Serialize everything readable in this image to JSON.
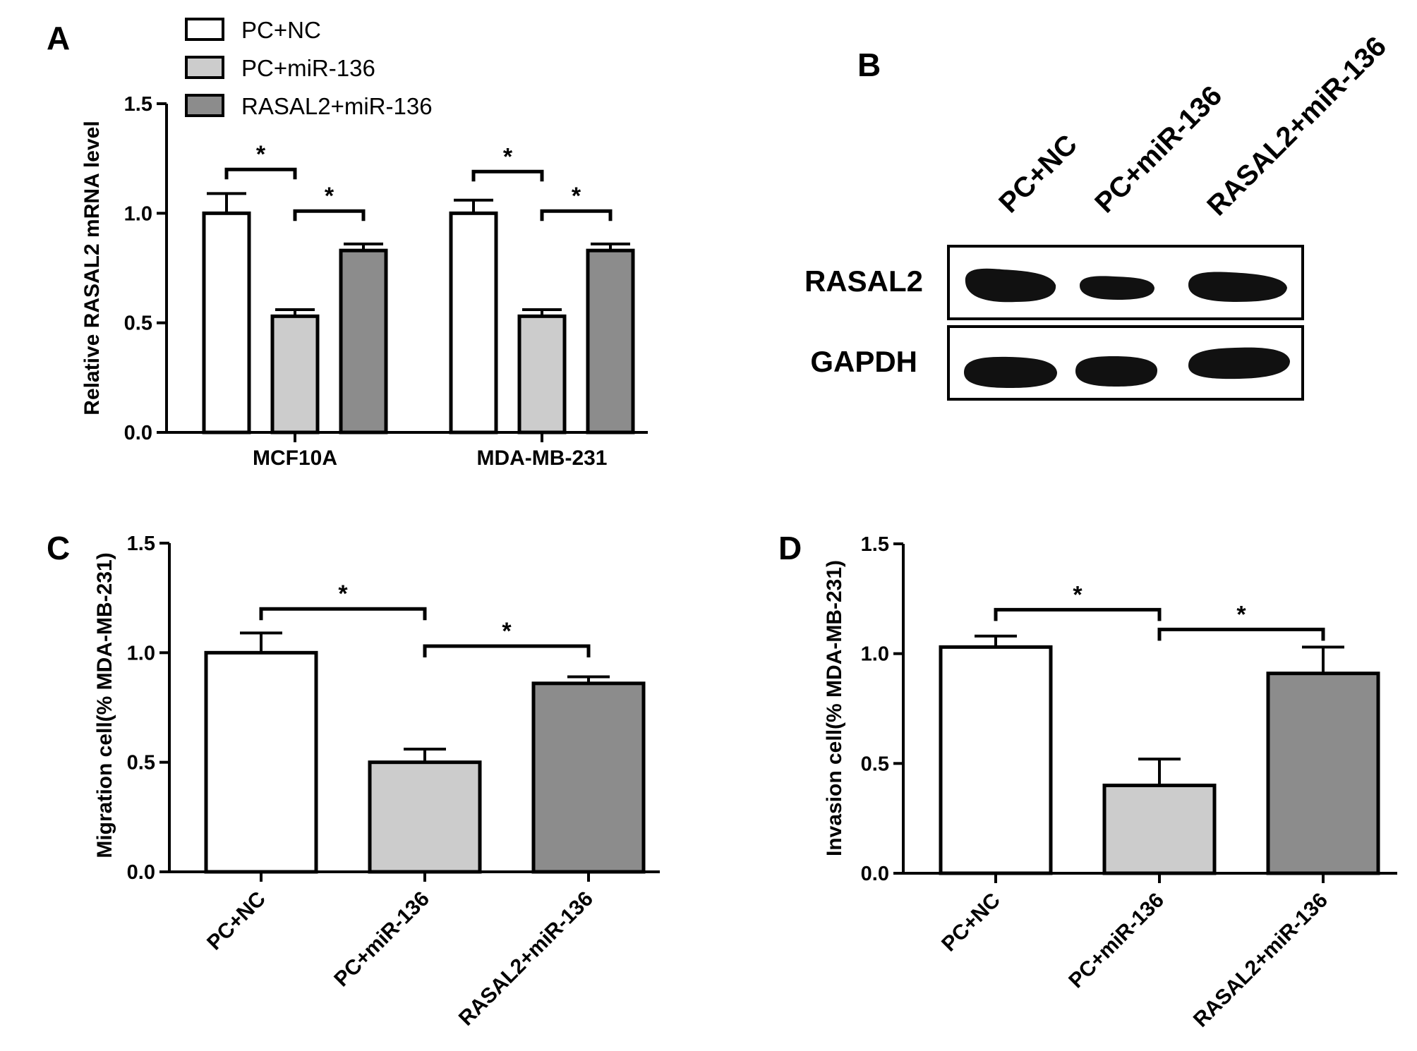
{
  "panels": {
    "A": "A",
    "B": "B",
    "C": "C",
    "D": "D"
  },
  "legend": [
    {
      "label": "PC+NC",
      "color": "#ffffff"
    },
    {
      "label": "PC+miR-136",
      "color": "#cccccc"
    },
    {
      "label": "RASAL2+miR-136",
      "color": "#8c8c8c"
    }
  ],
  "blot": {
    "lane_labels": [
      "PC+NC",
      "PC+miR-136",
      "RASAL2+miR-136"
    ],
    "rows": [
      "RASAL2",
      "GAPDH"
    ]
  },
  "significance_marker": "*",
  "chart_data": [
    {
      "type": "bar",
      "panel": "A",
      "ylabel": "Relative RASAL2 mRNA level",
      "categories": [
        "MCF10A",
        "MDA-MB-231"
      ],
      "yticks": [
        "0.0",
        "0.5",
        "1.0",
        "1.5"
      ],
      "ylim": [
        0,
        1.5
      ],
      "series": [
        {
          "name": "PC+NC",
          "values": [
            1.0,
            1.0
          ],
          "errors": [
            0.09,
            0.06
          ]
        },
        {
          "name": "PC+miR-136",
          "values": [
            0.53,
            0.53
          ],
          "errors": [
            0.03,
            0.03
          ]
        },
        {
          "name": "RASAL2+miR-136",
          "values": [
            0.83,
            0.83
          ],
          "errors": [
            0.03,
            0.03
          ]
        }
      ],
      "significance": [
        {
          "group": 0,
          "from": 0,
          "to": 1,
          "y": 1.2,
          "label": "*"
        },
        {
          "group": 0,
          "from": 1,
          "to": 2,
          "y": 1.01,
          "label": "*"
        },
        {
          "group": 1,
          "from": 0,
          "to": 1,
          "y": 1.19,
          "label": "*"
        },
        {
          "group": 1,
          "from": 1,
          "to": 2,
          "y": 1.01,
          "label": "*"
        }
      ]
    },
    {
      "type": "bar",
      "panel": "C",
      "ylabel": "Migration cell(% MDA-MB-231)",
      "categories": [
        "PC+NC",
        "PC+miR-136",
        "RASAL2+miR-136"
      ],
      "yticks": [
        "0.0",
        "0.5",
        "1.0",
        "1.5"
      ],
      "ylim": [
        0,
        1.5
      ],
      "values": [
        1.0,
        0.5,
        0.86
      ],
      "errors": [
        0.09,
        0.06,
        0.03
      ],
      "significance": [
        {
          "from": 0,
          "to": 1,
          "y": 1.2,
          "label": "*"
        },
        {
          "from": 1,
          "to": 2,
          "y": 1.03,
          "label": "*"
        }
      ]
    },
    {
      "type": "bar",
      "panel": "D",
      "ylabel": "Invasion cell(% MDA-MB-231)",
      "categories": [
        "PC+NC",
        "PC+miR-136",
        "RASAL2+miR-136"
      ],
      "yticks": [
        "0.0",
        "0.5",
        "1.0",
        "1.5"
      ],
      "ylim": [
        0,
        1.5
      ],
      "values": [
        1.03,
        0.4,
        0.91
      ],
      "errors": [
        0.05,
        0.12,
        0.12
      ],
      "significance": [
        {
          "from": 0,
          "to": 1,
          "y": 1.2,
          "label": "*"
        },
        {
          "from": 1,
          "to": 2,
          "y": 1.11,
          "label": "*"
        }
      ]
    }
  ]
}
